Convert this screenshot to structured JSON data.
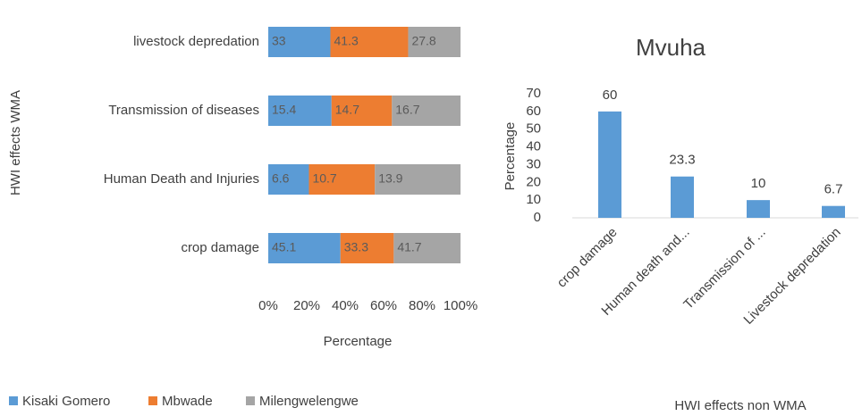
{
  "chart_data": [
    {
      "type": "bar",
      "orientation": "horizontal",
      "stacked": "percent",
      "categories": [
        "livestock depredation",
        "Transmission of diseases",
        "Human Death and Injuries",
        "crop damage"
      ],
      "series": [
        {
          "name": "Kisaki Gomero",
          "color": "#5b9bd5",
          "values": [
            33,
            15.4,
            6.6,
            45.1
          ]
        },
        {
          "name": "Mbwade",
          "color": "#ed7d31",
          "values": [
            41.3,
            14.7,
            10.7,
            33.3
          ]
        },
        {
          "name": "Milengwelengwe",
          "color": "#a5a5a5",
          "values": [
            27.8,
            16.7,
            13.9,
            41.7
          ]
        }
      ],
      "xlim": [
        0,
        100
      ],
      "xticks": [
        {
          "value": 0,
          "label": "0%"
        },
        {
          "value": 20,
          "label": "20%"
        },
        {
          "value": 40,
          "label": "40%"
        },
        {
          "value": 60,
          "label": "60%"
        },
        {
          "value": 80,
          "label": "80%"
        },
        {
          "value": 100,
          "label": "100%"
        }
      ],
      "xlabel": "Percentage",
      "ylabel": "HWI effects WMA",
      "legend": "bottom"
    },
    {
      "type": "bar",
      "title": "Mvuha",
      "categories": [
        "crop damage",
        "Human death and...",
        "Transmission of ...",
        "Livestock depredation"
      ],
      "values": [
        60,
        23.3,
        10,
        6.7
      ],
      "color": "#5b9bd5",
      "ylim": [
        0,
        70
      ],
      "yticks": [
        0,
        10,
        20,
        30,
        40,
        50,
        60,
        70
      ],
      "ylabel": "Percentage",
      "xlabel": "HWI effects non WMA"
    }
  ]
}
